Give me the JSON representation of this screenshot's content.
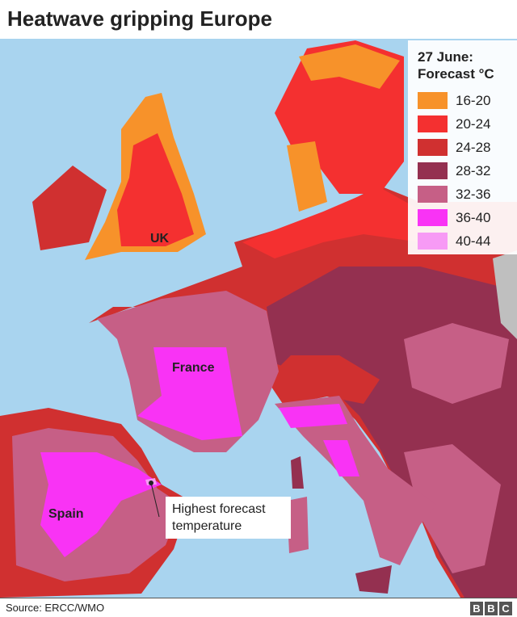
{
  "title": "Heatwave gripping Europe",
  "legend": {
    "title_line1": "27 June:",
    "title_line2": "Forecast °C",
    "items": [
      {
        "label": "16-20",
        "color": "#f7922a"
      },
      {
        "label": "20-24",
        "color": "#f43030"
      },
      {
        "label": "24-28",
        "color": "#d03030"
      },
      {
        "label": "28-32",
        "color": "#943050"
      },
      {
        "label": "32-36",
        "color": "#c65f86"
      },
      {
        "label": "36-40",
        "color": "#f933f5"
      },
      {
        "label": "40-44",
        "color": "#f79af5"
      }
    ]
  },
  "sea_color": "#a9d4ef",
  "place_labels": {
    "uk": "UK",
    "france": "France",
    "spain": "Spain"
  },
  "annotation": {
    "line1": "Highest forecast",
    "line2": "temperature"
  },
  "source": "Source: ERCC/WMO",
  "logo": [
    "B",
    "B",
    "C"
  ]
}
